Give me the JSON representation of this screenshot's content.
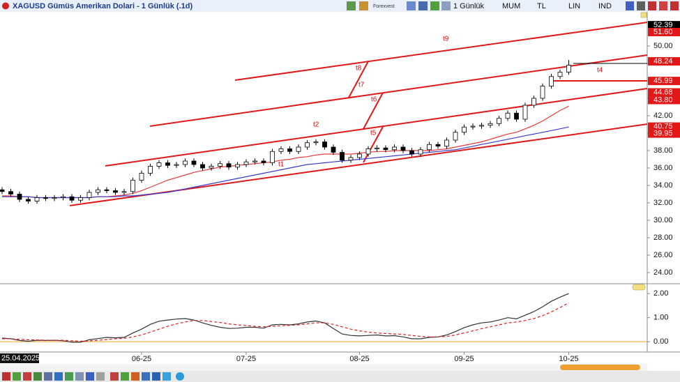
{
  "toolbar": {
    "brand": "Forexvest",
    "items": [
      "1 Günlük",
      "MUM",
      "TL",
      "LIN",
      "IND"
    ]
  },
  "chart_data": [
    {
      "type": "candlestick",
      "title": "XAGUSD Gümüs Amerikan Dolari - 1 Günlük (.1d)",
      "categories": [
        "25.04.2025",
        null,
        null,
        null,
        null,
        null,
        null,
        null,
        null,
        null,
        null,
        null,
        null,
        null,
        null,
        null,
        "06-25",
        null,
        null,
        null,
        null,
        null,
        null,
        null,
        null,
        null,
        null,
        null,
        "07-25",
        null,
        null,
        null,
        null,
        null,
        null,
        null,
        null,
        null,
        null,
        null,
        null,
        "08-25",
        null,
        null,
        null,
        null,
        null,
        null,
        null,
        null,
        null,
        null,
        null,
        "09-25",
        null,
        null,
        null,
        null,
        null,
        null,
        null,
        null,
        null,
        null,
        null,
        "10-25"
      ],
      "open": [
        33.5,
        33.3,
        33.0,
        32.4,
        32.2,
        32.6,
        32.5,
        32.6,
        32.7,
        32.3,
        32.6,
        33.2,
        33.5,
        33.4,
        33.2,
        33.3,
        34.6,
        35.4,
        36.2,
        36.6,
        36.3,
        36.4,
        36.8,
        36.4,
        36.0,
        36.2,
        36.5,
        36.1,
        36.4,
        36.7,
        36.8,
        36.6,
        37.9,
        38.2,
        37.9,
        38.4,
        38.9,
        39.0,
        38.4,
        37.8,
        36.9,
        37.2,
        37.6,
        38.2,
        38.3,
        38.1,
        38.4,
        38.0,
        37.6,
        38.1,
        38.7,
        38.5,
        39.2,
        40.1,
        40.7,
        40.8,
        40.9,
        41.1,
        41.7,
        42.3,
        41.6,
        43.2,
        44.0,
        45.4,
        46.5,
        47.0
      ],
      "high": [
        33.8,
        33.6,
        33.3,
        32.7,
        32.9,
        32.9,
        32.9,
        33.0,
        33.0,
        32.9,
        33.5,
        33.8,
        33.8,
        33.7,
        33.6,
        34.9,
        35.7,
        36.5,
        36.9,
        36.9,
        36.7,
        37.1,
        37.1,
        36.7,
        36.5,
        36.8,
        36.8,
        36.7,
        37.0,
        37.1,
        37.1,
        38.2,
        38.5,
        38.5,
        38.7,
        39.2,
        39.3,
        39.3,
        38.7,
        38.1,
        37.5,
        37.9,
        38.5,
        38.6,
        38.6,
        38.7,
        38.7,
        38.3,
        38.4,
        39.0,
        39.0,
        39.5,
        40.4,
        41.0,
        41.1,
        41.2,
        41.4,
        42.0,
        42.6,
        42.6,
        43.5,
        44.3,
        45.7,
        46.8,
        47.3,
        48.4
      ],
      "low": [
        33.0,
        32.7,
        32.1,
        31.9,
        31.9,
        32.2,
        32.2,
        32.3,
        32.0,
        32.0,
        32.3,
        32.9,
        33.1,
        32.9,
        32.9,
        33.0,
        34.3,
        35.1,
        35.9,
        36.0,
        36.0,
        36.1,
        36.1,
        35.7,
        35.7,
        35.9,
        35.8,
        35.8,
        36.1,
        36.4,
        36.3,
        36.3,
        37.6,
        37.6,
        37.6,
        38.1,
        38.6,
        38.1,
        37.5,
        36.6,
        36.6,
        36.9,
        37.3,
        37.9,
        37.8,
        37.8,
        37.7,
        37.3,
        37.3,
        37.8,
        38.2,
        38.2,
        38.9,
        39.8,
        40.4,
        40.5,
        40.6,
        40.8,
        41.4,
        41.3,
        41.3,
        42.9,
        43.7,
        45.1,
        46.2,
        46.7
      ],
      "close": [
        33.3,
        33.0,
        32.4,
        32.2,
        32.6,
        32.5,
        32.6,
        32.7,
        32.3,
        32.6,
        33.2,
        33.5,
        33.4,
        33.2,
        33.3,
        34.6,
        35.4,
        36.2,
        36.6,
        36.3,
        36.4,
        36.8,
        36.4,
        36.0,
        36.2,
        36.5,
        36.1,
        36.4,
        36.7,
        36.8,
        36.6,
        37.9,
        38.2,
        37.9,
        38.4,
        38.9,
        39.0,
        38.4,
        37.8,
        36.9,
        37.2,
        37.6,
        38.2,
        38.3,
        38.1,
        38.4,
        38.0,
        37.6,
        38.1,
        38.7,
        38.5,
        39.2,
        40.1,
        40.7,
        40.8,
        40.9,
        41.1,
        41.7,
        42.3,
        41.6,
        43.2,
        44.0,
        45.4,
        46.5,
        47.0,
        47.8
      ],
      "up_color": "#ffffff",
      "down_color": "#000000",
      "overlays": [
        {
          "color": "#e83a3a",
          "values": [
            32.8,
            32.8,
            32.7,
            32.7,
            32.6,
            32.6,
            32.6,
            32.6,
            32.6,
            32.6,
            32.6,
            32.7,
            32.7,
            32.8,
            32.9,
            33.1,
            33.4,
            33.8,
            34.2,
            34.6,
            34.9,
            35.2,
            35.5,
            35.7,
            35.9,
            36.1,
            36.2,
            36.3,
            36.4,
            36.5,
            36.6,
            36.7,
            36.9,
            37.0,
            37.2,
            37.3,
            37.5,
            37.6,
            37.6,
            37.6,
            37.6,
            37.7,
            37.8,
            37.9,
            37.9,
            38.0,
            38.0,
            38.0,
            38.0,
            38.0,
            38.1,
            38.2,
            38.4,
            38.6,
            38.8,
            39.0,
            39.3,
            39.6,
            39.9,
            40.1,
            40.5,
            40.9,
            41.4,
            42.0,
            42.6,
            43.1
          ]
        },
        {
          "color": "#3a3ad0",
          "values": [
            32.7,
            32.7,
            32.7,
            32.7,
            32.6,
            32.6,
            32.6,
            32.6,
            32.6,
            32.6,
            32.6,
            32.7,
            32.7,
            32.7,
            32.8,
            32.8,
            32.9,
            33.0,
            33.1,
            33.2,
            33.4,
            33.6,
            33.8,
            34.0,
            34.2,
            34.4,
            34.6,
            34.8,
            35.0,
            35.2,
            35.4,
            35.6,
            35.8,
            36.0,
            36.2,
            36.4,
            36.5,
            36.6,
            36.7,
            36.8,
            36.9,
            37.0,
            37.1,
            37.2,
            37.3,
            37.4,
            37.5,
            37.6,
            37.7,
            37.8,
            37.9,
            38.0,
            38.1,
            38.3,
            38.5,
            38.7,
            38.9,
            39.1,
            39.3,
            39.5,
            39.7,
            39.9,
            40.1,
            40.3,
            40.5,
            40.7
          ]
        }
      ],
      "annotations": [
        "t9",
        "t8",
        "t7",
        "t6",
        "t2",
        "t5",
        "t1",
        "t4"
      ],
      "price_labels": [
        {
          "value": 52.39,
          "color": "#000000"
        },
        {
          "value": 51.6,
          "label": "51.60",
          "color": "#e01818"
        },
        {
          "value": 48.24,
          "color": "#e01818"
        },
        {
          "value": 45.99,
          "color": "#e01818"
        },
        {
          "value": 44.68,
          "color": "#e01818"
        },
        {
          "value": 43.8,
          "label": "43.80",
          "color": "#e01818"
        },
        {
          "value": 40.75,
          "color": "#e01818"
        },
        {
          "value": 39.95,
          "color": "#e01818"
        }
      ],
      "ylim": [
        22.72,
        53.92
      ],
      "yticks": [
        {
          "value": 24,
          "label": "24.00"
        },
        {
          "value": 26,
          "label": "26.00"
        },
        {
          "value": 28,
          "label": "28.00"
        },
        {
          "value": 30,
          "label": "30.00"
        },
        {
          "value": 32,
          "label": "32.00"
        },
        {
          "value": 34,
          "label": "34.00"
        },
        {
          "value": 36,
          "label": "36.00"
        },
        {
          "value": 38,
          "label": "38.00"
        },
        {
          "value": 40,
          "label": "40.00"
        },
        {
          "value": 42,
          "label": "42.00"
        },
        {
          "value": 44,
          "label": "44.00"
        },
        {
          "value": 46,
          "label": "46.00"
        },
        {
          "value": 48,
          "label": "48.00"
        },
        {
          "value": 50,
          "label": "50.00"
        }
      ],
      "grid": false
    },
    {
      "type": "line",
      "series": [
        {
          "color": "#333333",
          "dash": false,
          "values": [
            0.15,
            0.12,
            0.05,
            0.02,
            0.06,
            0.05,
            0.06,
            0.04,
            -0.02,
            -0.02,
            0.08,
            0.13,
            0.18,
            0.16,
            0.18,
            0.36,
            0.52,
            0.72,
            0.85,
            0.9,
            0.94,
            0.96,
            0.9,
            0.78,
            0.68,
            0.6,
            0.55,
            0.56,
            0.6,
            0.6,
            0.56,
            0.7,
            0.72,
            0.7,
            0.74,
            0.82,
            0.86,
            0.78,
            0.55,
            0.32,
            0.26,
            0.24,
            0.26,
            0.28,
            0.24,
            0.25,
            0.2,
            0.12,
            0.12,
            0.18,
            0.2,
            0.28,
            0.42,
            0.58,
            0.7,
            0.78,
            0.82,
            0.9,
            1.0,
            0.95,
            1.1,
            1.25,
            1.45,
            1.68,
            1.85,
            2.0
          ]
        },
        {
          "color": "#e02020",
          "dash": true,
          "values": [
            0.12,
            0.12,
            0.1,
            0.08,
            0.07,
            0.06,
            0.06,
            0.06,
            0.04,
            0.02,
            0.03,
            0.06,
            0.09,
            0.12,
            0.14,
            0.2,
            0.28,
            0.4,
            0.52,
            0.64,
            0.74,
            0.82,
            0.88,
            0.88,
            0.84,
            0.8,
            0.74,
            0.7,
            0.67,
            0.64,
            0.62,
            0.64,
            0.66,
            0.68,
            0.7,
            0.74,
            0.78,
            0.78,
            0.72,
            0.62,
            0.52,
            0.45,
            0.4,
            0.36,
            0.34,
            0.32,
            0.3,
            0.26,
            0.22,
            0.2,
            0.2,
            0.22,
            0.28,
            0.36,
            0.45,
            0.54,
            0.62,
            0.7,
            0.78,
            0.82,
            0.88,
            0.96,
            1.08,
            1.24,
            1.42,
            1.62
          ]
        }
      ],
      "reference_line": {
        "value": 0,
        "color": "#f0a030"
      },
      "ylim": [
        -0.43,
        2.41
      ],
      "yticks": [
        {
          "value": 0,
          "label": "0.00"
        },
        {
          "value": 1,
          "label": "1.00"
        },
        {
          "value": 2,
          "label": "2.00"
        }
      ],
      "grid": false
    }
  ]
}
